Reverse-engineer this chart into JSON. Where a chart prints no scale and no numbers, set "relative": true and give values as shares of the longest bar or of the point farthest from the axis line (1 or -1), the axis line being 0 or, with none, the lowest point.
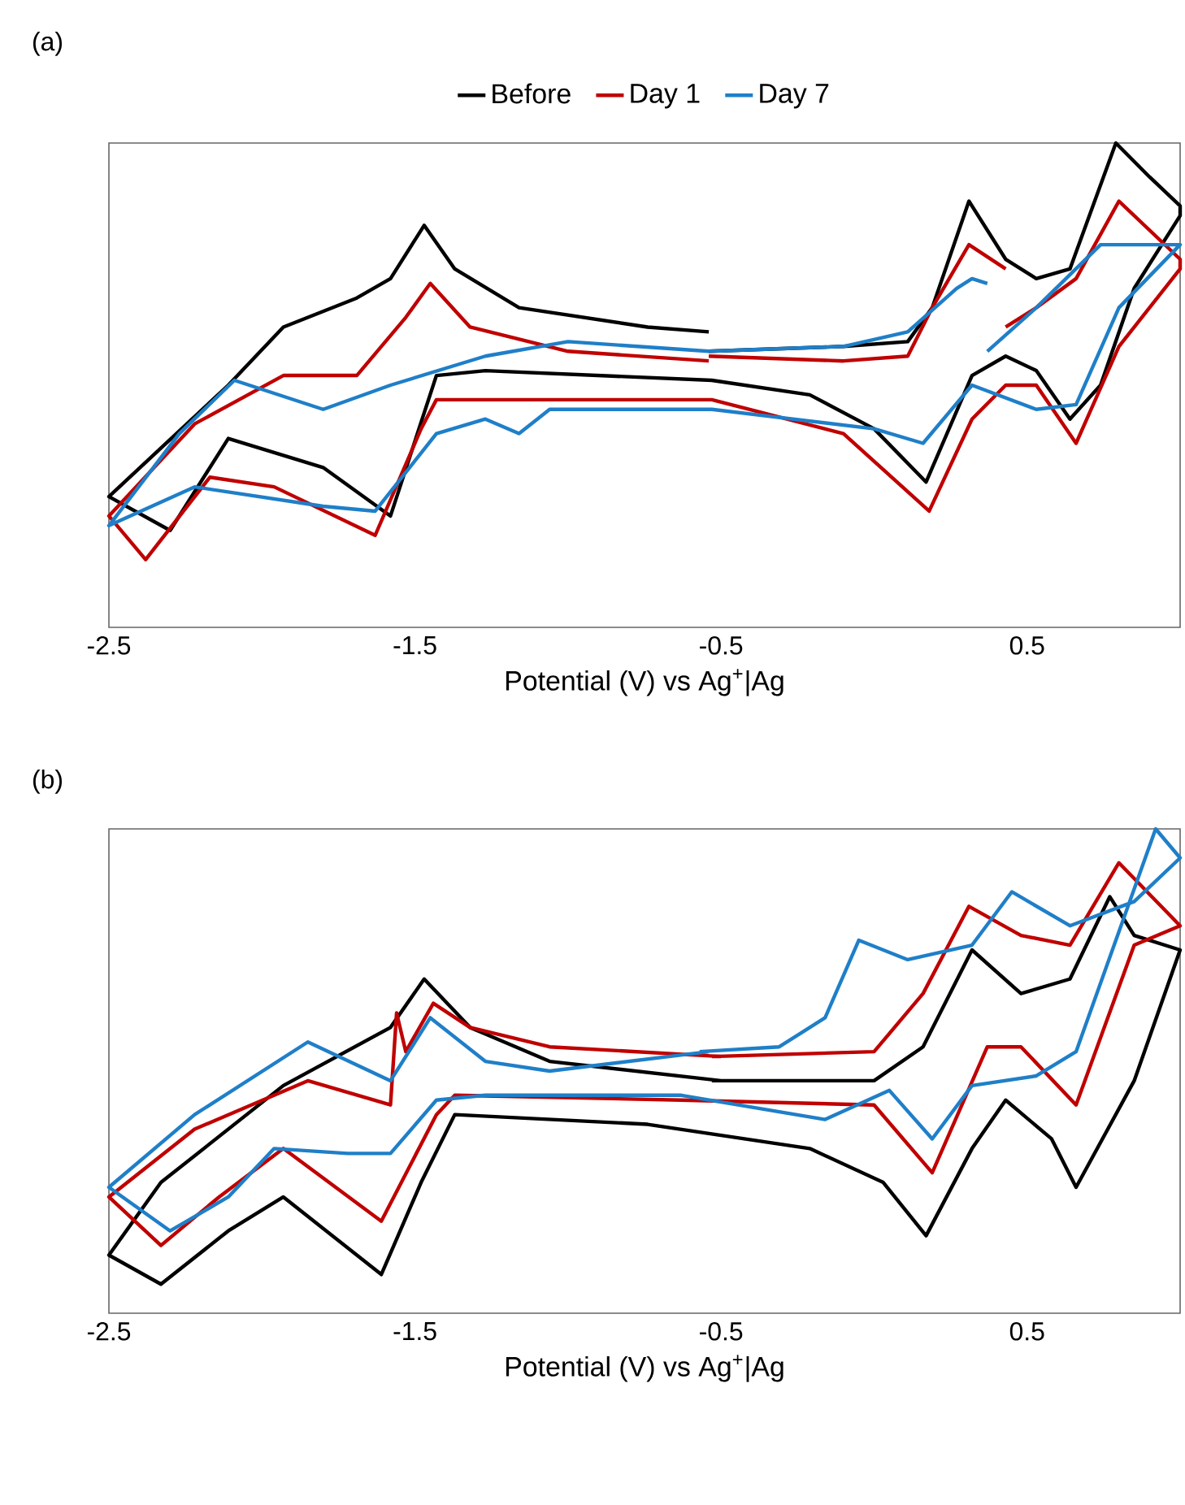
{
  "chart_data": [
    {
      "type": "line",
      "annotations": [
        "(a)"
      ],
      "xlabel": "Potential (V) vs Ag$^{+}$|Ag",
      "xlim": [
        -2.5,
        1.0
      ],
      "xticks": [
        -2.5,
        -1.5,
        -0.5,
        0.5
      ],
      "relative": true,
      "tick_labels": "x",
      "legend": "top",
      "series": [
        {
          "name": "Before",
          "color": "#000000",
          "x": [
            -0.54,
            -0.1,
            0.11,
            0.19,
            0.31,
            0.43,
            0.53,
            0.64,
            0.79,
            0.9,
            1.0,
            1.0,
            0.85,
            0.74,
            0.64,
            0.53,
            0.43,
            0.32,
            0.17,
            0.0,
            -0.21,
            -0.53,
            -1.27,
            -1.43,
            -1.58,
            -1.8,
            -2.11,
            -2.3,
            -2.5,
            -2.33,
            -2.11,
            -1.93,
            -1.69,
            -1.58,
            -1.47,
            -1.37,
            -1.16,
            -0.74,
            -0.54
          ],
          "values": [
            0.57,
            0.58,
            0.59,
            0.66,
            0.88,
            0.76,
            0.72,
            0.74,
            1.0,
            0.93,
            0.87,
            0.85,
            0.7,
            0.5,
            0.43,
            0.53,
            0.56,
            0.52,
            0.3,
            0.41,
            0.48,
            0.51,
            0.53,
            0.52,
            0.23,
            0.33,
            0.39,
            0.2,
            0.27,
            0.37,
            0.5,
            0.62,
            0.68,
            0.72,
            0.83,
            0.74,
            0.66,
            0.62,
            0.61
          ]
        },
        {
          "name": "Day 1",
          "color": "#c00000",
          "x": [
            -0.54,
            -0.1,
            0.11,
            0.19,
            0.31,
            0.43,
            null,
            -0.54,
            -1.0,
            -1.32,
            -1.45,
            -1.53,
            -1.69,
            -1.93,
            -2.22,
            -2.5,
            -2.38,
            -2.17,
            -1.96,
            -1.63,
            -1.48,
            -1.43,
            -0.53,
            -0.1,
            0.18,
            0.32,
            0.43,
            0.53,
            0.66,
            0.8,
            1.0,
            1.0,
            0.8,
            0.66,
            0.53,
            0.43
          ],
          "values": [
            0.56,
            0.55,
            0.56,
            0.66,
            0.79,
            0.74,
            null,
            0.55,
            0.57,
            0.62,
            0.71,
            0.64,
            0.52,
            0.52,
            0.42,
            0.23,
            0.14,
            0.31,
            0.29,
            0.19,
            0.41,
            0.47,
            0.47,
            0.4,
            0.24,
            0.43,
            0.5,
            0.5,
            0.38,
            0.58,
            0.74,
            0.76,
            0.88,
            0.72,
            0.66,
            0.62
          ]
        },
        {
          "name": "Day 7",
          "color": "#1f7fc8",
          "x": [
            -0.54,
            -0.1,
            0.11,
            0.27,
            0.32,
            0.37,
            null,
            -0.54,
            -1.0,
            -1.27,
            -1.58,
            -1.8,
            -2.09,
            -2.27,
            -2.5,
            -2.22,
            -1.8,
            -1.63,
            -1.43,
            -1.27,
            -1.16,
            -1.06,
            -0.53,
            0.0,
            0.16,
            0.32,
            0.53,
            0.66,
            0.8,
            1.0,
            0.85,
            0.74,
            0.53,
            0.37
          ],
          "values": [
            0.57,
            0.58,
            0.61,
            0.7,
            0.72,
            0.71,
            null,
            0.57,
            0.59,
            0.56,
            0.5,
            0.45,
            0.51,
            0.4,
            0.21,
            0.29,
            0.25,
            0.24,
            0.4,
            0.43,
            0.4,
            0.45,
            0.45,
            0.41,
            0.38,
            0.5,
            0.45,
            0.46,
            0.66,
            0.79,
            0.79,
            0.79,
            0.66,
            0.57
          ]
        }
      ]
    },
    {
      "type": "line",
      "annotations": [
        "(b)"
      ],
      "xlabel": "Potential (V) vs Ag$^{+}$|Ag",
      "xlim": [
        -2.5,
        1.0
      ],
      "xticks": [
        -2.5,
        -1.5,
        -0.5,
        0.5
      ],
      "relative": true,
      "tick_labels": "x",
      "series": [
        {
          "color": "#000000",
          "x": [
            -0.5,
            -1.06,
            -1.32,
            -1.47,
            -1.58,
            -1.93,
            -2.33,
            -2.5,
            -2.33,
            -2.11,
            -1.93,
            -1.61,
            -1.48,
            -1.37,
            -0.74,
            -0.21,
            0.03,
            0.17,
            0.32,
            0.43,
            0.58,
            0.66,
            0.85,
            1.0,
            0.85,
            0.77,
            0.64,
            0.48,
            0.32,
            0.16,
            0.0,
            -0.53
          ],
          "values": [
            0.48,
            0.52,
            0.59,
            0.69,
            0.59,
            0.47,
            0.27,
            0.12,
            0.06,
            0.17,
            0.24,
            0.08,
            0.27,
            0.41,
            0.39,
            0.34,
            0.27,
            0.16,
            0.34,
            0.44,
            0.36,
            0.26,
            0.48,
            0.75,
            0.78,
            0.86,
            0.69,
            0.66,
            0.75,
            0.55,
            0.48,
            0.48
          ]
        },
        {
          "color": "#c00000",
          "x": [
            -0.5,
            -1.06,
            -1.32,
            -1.44,
            -1.53,
            -1.56,
            -1.58,
            -1.85,
            -2.22,
            -2.5,
            -2.33,
            -2.14,
            -1.93,
            -1.61,
            -1.43,
            -1.37,
            -0.63,
            0.0,
            0.19,
            0.37,
            0.48,
            0.66,
            0.85,
            1.0,
            0.8,
            0.64,
            0.48,
            0.31,
            0.16,
            0.0,
            -0.53
          ],
          "values": [
            0.53,
            0.55,
            0.59,
            0.64,
            0.54,
            0.62,
            0.43,
            0.48,
            0.38,
            0.24,
            0.14,
            0.24,
            0.34,
            0.19,
            0.41,
            0.45,
            0.44,
            0.43,
            0.29,
            0.55,
            0.55,
            0.43,
            0.76,
            0.8,
            0.93,
            0.76,
            0.78,
            0.84,
            0.66,
            0.54,
            0.53
          ]
        },
        {
          "color": "#1f7fc8",
          "x": [
            -0.54,
            -1.06,
            -1.27,
            -1.45,
            -1.58,
            -1.85,
            -2.22,
            -2.5,
            -2.3,
            -2.11,
            -1.96,
            -1.72,
            -1.58,
            -1.43,
            -1.27,
            -0.63,
            -0.16,
            0.05,
            0.19,
            0.32,
            0.53,
            0.66,
            0.92,
            1.0,
            0.85,
            0.64,
            0.45,
            0.32,
            0.11,
            -0.05,
            -0.16,
            -0.31,
            -0.57
          ],
          "values": [
            0.54,
            0.5,
            0.52,
            0.61,
            0.48,
            0.56,
            0.41,
            0.26,
            0.17,
            0.24,
            0.34,
            0.33,
            0.33,
            0.44,
            0.45,
            0.45,
            0.4,
            0.46,
            0.36,
            0.47,
            0.49,
            0.54,
            1.0,
            0.94,
            0.85,
            0.8,
            0.87,
            0.76,
            0.73,
            0.77,
            0.61,
            0.55,
            0.54
          ]
        }
      ]
    }
  ]
}
